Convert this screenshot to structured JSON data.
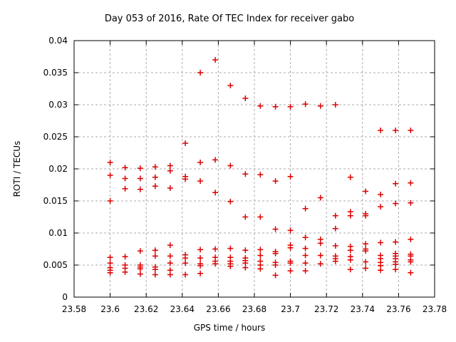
{
  "page": {
    "background": "#ffffff"
  },
  "chart_data": {
    "type": "scatter",
    "title": "Day 053 of 2016, Rate Of TEC Index for receiver gabo",
    "xlabel": "GPS time / hours",
    "ylabel": "ROTI / TECUs",
    "xlim": [
      23.58,
      23.78
    ],
    "ylim": [
      0,
      0.04
    ],
    "xticks": {
      "values": [
        23.58,
        23.6,
        23.62,
        23.64,
        23.66,
        23.68,
        23.7,
        23.72,
        23.74,
        23.76,
        23.78
      ],
      "labels": [
        "23.58",
        "23.6",
        "23.62",
        "23.64",
        "23.66",
        "23.68",
        "23.7",
        "23.72",
        "23.74",
        "23.76",
        "23.78"
      ]
    },
    "yticks": {
      "values": [
        0,
        0.005,
        0.01,
        0.015,
        0.02,
        0.025,
        0.03,
        0.035,
        0.04
      ],
      "labels": [
        "0",
        "0.005",
        "0.01",
        "0.015",
        "0.02",
        "0.025",
        "0.03",
        "0.035",
        "0.04"
      ]
    },
    "grid": true,
    "legend": "none",
    "marker": "plus",
    "colors": {
      "marker": "#dd0000",
      "grid": "#ababab",
      "axis": "#000000",
      "text": "#000000",
      "background": "#ffffff"
    },
    "series": [
      {
        "name": "ROTI",
        "points": [
          [
            23.6,
            0.021
          ],
          [
            23.6,
            0.019
          ],
          [
            23.6,
            0.015
          ],
          [
            23.6,
            0.0062
          ],
          [
            23.6,
            0.0053
          ],
          [
            23.6,
            0.0046
          ],
          [
            23.6,
            0.0042
          ],
          [
            23.6,
            0.0038
          ],
          [
            23.6083,
            0.0202
          ],
          [
            23.6083,
            0.0185
          ],
          [
            23.6083,
            0.0169
          ],
          [
            23.6083,
            0.0063
          ],
          [
            23.6083,
            0.005
          ],
          [
            23.6083,
            0.0045
          ],
          [
            23.6083,
            0.0039
          ],
          [
            23.6167,
            0.0201
          ],
          [
            23.6167,
            0.0185
          ],
          [
            23.6167,
            0.0168
          ],
          [
            23.6167,
            0.0072
          ],
          [
            23.6167,
            0.005
          ],
          [
            23.6167,
            0.0047
          ],
          [
            23.6167,
            0.0044
          ],
          [
            23.6167,
            0.0036
          ],
          [
            23.625,
            0.0203
          ],
          [
            23.625,
            0.0187
          ],
          [
            23.625,
            0.0173
          ],
          [
            23.625,
            0.0073
          ],
          [
            23.625,
            0.0064
          ],
          [
            23.625,
            0.0047
          ],
          [
            23.625,
            0.0043
          ],
          [
            23.625,
            0.0035
          ],
          [
            23.6333,
            0.0205
          ],
          [
            23.6333,
            0.0197
          ],
          [
            23.6333,
            0.017
          ],
          [
            23.6333,
            0.0081
          ],
          [
            23.6333,
            0.0064
          ],
          [
            23.6333,
            0.0053
          ],
          [
            23.6333,
            0.0042
          ],
          [
            23.6333,
            0.0035
          ],
          [
            23.6417,
            0.024
          ],
          [
            23.6417,
            0.0188
          ],
          [
            23.6417,
            0.0184
          ],
          [
            23.6417,
            0.0066
          ],
          [
            23.6417,
            0.0061
          ],
          [
            23.6417,
            0.0053
          ],
          [
            23.6417,
            0.0035
          ],
          [
            23.65,
            0.035
          ],
          [
            23.65,
            0.021
          ],
          [
            23.65,
            0.0181
          ],
          [
            23.65,
            0.0074
          ],
          [
            23.65,
            0.0061
          ],
          [
            23.65,
            0.0052
          ],
          [
            23.65,
            0.0049
          ],
          [
            23.65,
            0.0037
          ],
          [
            23.6583,
            0.037
          ],
          [
            23.6583,
            0.0214
          ],
          [
            23.6583,
            0.0163
          ],
          [
            23.6583,
            0.0075
          ],
          [
            23.6583,
            0.0062
          ],
          [
            23.6583,
            0.0056
          ],
          [
            23.6583,
            0.0052
          ],
          [
            23.6667,
            0.033
          ],
          [
            23.6667,
            0.0205
          ],
          [
            23.6667,
            0.0149
          ],
          [
            23.6667,
            0.0076
          ],
          [
            23.6667,
            0.0062
          ],
          [
            23.6667,
            0.0056
          ],
          [
            23.6667,
            0.0052
          ],
          [
            23.6667,
            0.0048
          ],
          [
            23.675,
            0.031
          ],
          [
            23.675,
            0.0192
          ],
          [
            23.675,
            0.0125
          ],
          [
            23.675,
            0.0073
          ],
          [
            23.675,
            0.0061
          ],
          [
            23.675,
            0.0057
          ],
          [
            23.675,
            0.0053
          ],
          [
            23.675,
            0.0046
          ],
          [
            23.6833,
            0.0298
          ],
          [
            23.6833,
            0.0191
          ],
          [
            23.6833,
            0.0125
          ],
          [
            23.6833,
            0.0074
          ],
          [
            23.6833,
            0.0065
          ],
          [
            23.6833,
            0.0056
          ],
          [
            23.6833,
            0.005
          ],
          [
            23.6833,
            0.0044
          ],
          [
            23.6917,
            0.0297
          ],
          [
            23.6917,
            0.0181
          ],
          [
            23.6917,
            0.0106
          ],
          [
            23.6917,
            0.0071
          ],
          [
            23.6917,
            0.0068
          ],
          [
            23.6917,
            0.0054
          ],
          [
            23.6917,
            0.005
          ],
          [
            23.6917,
            0.0034
          ],
          [
            23.7,
            0.0297
          ],
          [
            23.7,
            0.0188
          ],
          [
            23.7,
            0.0104
          ],
          [
            23.7,
            0.0081
          ],
          [
            23.7,
            0.0077
          ],
          [
            23.7,
            0.0056
          ],
          [
            23.7,
            0.0053
          ],
          [
            23.7,
            0.0041
          ],
          [
            23.7083,
            0.0301
          ],
          [
            23.7083,
            0.0138
          ],
          [
            23.7083,
            0.0093
          ],
          [
            23.7083,
            0.0076
          ],
          [
            23.7083,
            0.0065
          ],
          [
            23.7083,
            0.0053
          ],
          [
            23.7083,
            0.0041
          ],
          [
            23.7167,
            0.0298
          ],
          [
            23.7167,
            0.0155
          ],
          [
            23.7167,
            0.009
          ],
          [
            23.7167,
            0.0084
          ],
          [
            23.7167,
            0.0065
          ],
          [
            23.7167,
            0.0052
          ],
          [
            23.725,
            0.03
          ],
          [
            23.725,
            0.0127
          ],
          [
            23.725,
            0.0107
          ],
          [
            23.725,
            0.008
          ],
          [
            23.725,
            0.0064
          ],
          [
            23.725,
            0.006
          ],
          [
            23.725,
            0.0056
          ],
          [
            23.7333,
            0.0187
          ],
          [
            23.7333,
            0.0133
          ],
          [
            23.7333,
            0.0127
          ],
          [
            23.7333,
            0.0079
          ],
          [
            23.7333,
            0.0073
          ],
          [
            23.7333,
            0.0063
          ],
          [
            23.7333,
            0.0058
          ],
          [
            23.7333,
            0.0043
          ],
          [
            23.7417,
            0.0165
          ],
          [
            23.7417,
            0.013
          ],
          [
            23.7417,
            0.0127
          ],
          [
            23.7417,
            0.0083
          ],
          [
            23.7417,
            0.0075
          ],
          [
            23.7417,
            0.0072
          ],
          [
            23.7417,
            0.0055
          ],
          [
            23.7417,
            0.0045
          ],
          [
            23.75,
            0.026
          ],
          [
            23.75,
            0.016
          ],
          [
            23.75,
            0.0141
          ],
          [
            23.75,
            0.0085
          ],
          [
            23.75,
            0.0065
          ],
          [
            23.75,
            0.006
          ],
          [
            23.75,
            0.0054
          ],
          [
            23.75,
            0.0049
          ],
          [
            23.75,
            0.0042
          ],
          [
            23.7583,
            0.026
          ],
          [
            23.7583,
            0.0177
          ],
          [
            23.7583,
            0.0146
          ],
          [
            23.7583,
            0.0086
          ],
          [
            23.7583,
            0.0068
          ],
          [
            23.7583,
            0.0064
          ],
          [
            23.7583,
            0.006
          ],
          [
            23.7583,
            0.0055
          ],
          [
            23.7583,
            0.0051
          ],
          [
            23.7583,
            0.0043
          ],
          [
            23.7667,
            0.026
          ],
          [
            23.7667,
            0.0178
          ],
          [
            23.7667,
            0.0147
          ],
          [
            23.7667,
            0.009
          ],
          [
            23.7667,
            0.0067
          ],
          [
            23.7667,
            0.0064
          ],
          [
            23.7667,
            0.0058
          ],
          [
            23.7667,
            0.0055
          ],
          [
            23.7667,
            0.0038
          ]
        ]
      }
    ]
  }
}
